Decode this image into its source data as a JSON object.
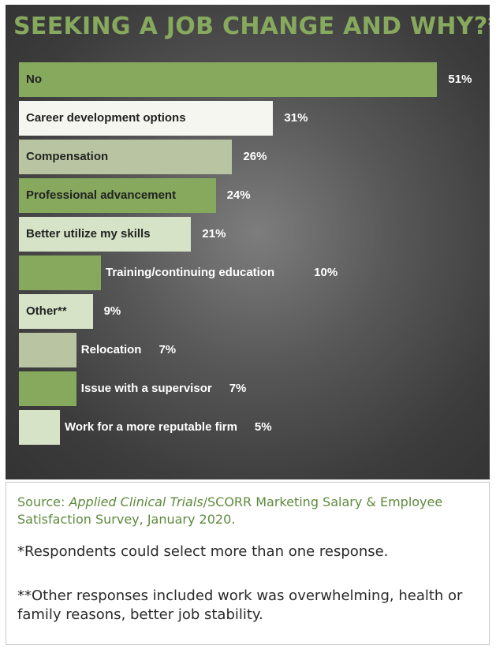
{
  "colors": {
    "title": "#86a95e",
    "bar_green": "#86a95e",
    "bar_sage": "#b9c5a2",
    "bar_white": "#f6f6f0",
    "bar_pale": "#d6e3c7",
    "source_text": "#5d8a3c"
  },
  "chart_data": {
    "type": "bar",
    "orientation": "horizontal",
    "title": "SEEKING A JOB CHANGE AND WHY?*",
    "unit": "%",
    "categories": [
      "No",
      "Career development options",
      "Compensation",
      "Professional advancement",
      "Better utilize my skills",
      "Training/continuing education",
      "Other**",
      "Relocation",
      "Issue with a supervisor",
      "Work for a more reputable firm"
    ],
    "values": [
      51,
      31,
      26,
      24,
      21,
      10,
      9,
      7,
      7,
      5
    ],
    "value_labels": [
      "51%",
      "31%",
      "26%",
      "24%",
      "21%",
      "10%",
      "9%",
      "7%",
      "7%",
      "5%"
    ],
    "bar_colors": [
      "#86a95e",
      "#f6f6f0",
      "#b9c5a2",
      "#86a95e",
      "#d6e3c7",
      "#86a95e",
      "#d6e3c7",
      "#b9c5a2",
      "#86a95e",
      "#d6e3c7"
    ],
    "xlim": [
      0,
      55
    ],
    "grid": false,
    "legend": false
  },
  "footer": {
    "source_prefix": "Source: ",
    "source_publication": "Applied Clinical Trials",
    "source_rest": "/SCORR Marketing Salary & Employee Satisfaction Survey, January 2020.",
    "note_1": "*Respondents could select more than one response.",
    "note_2": "**Other responses included work was overwhelming, health or family reasons, better job stability."
  }
}
